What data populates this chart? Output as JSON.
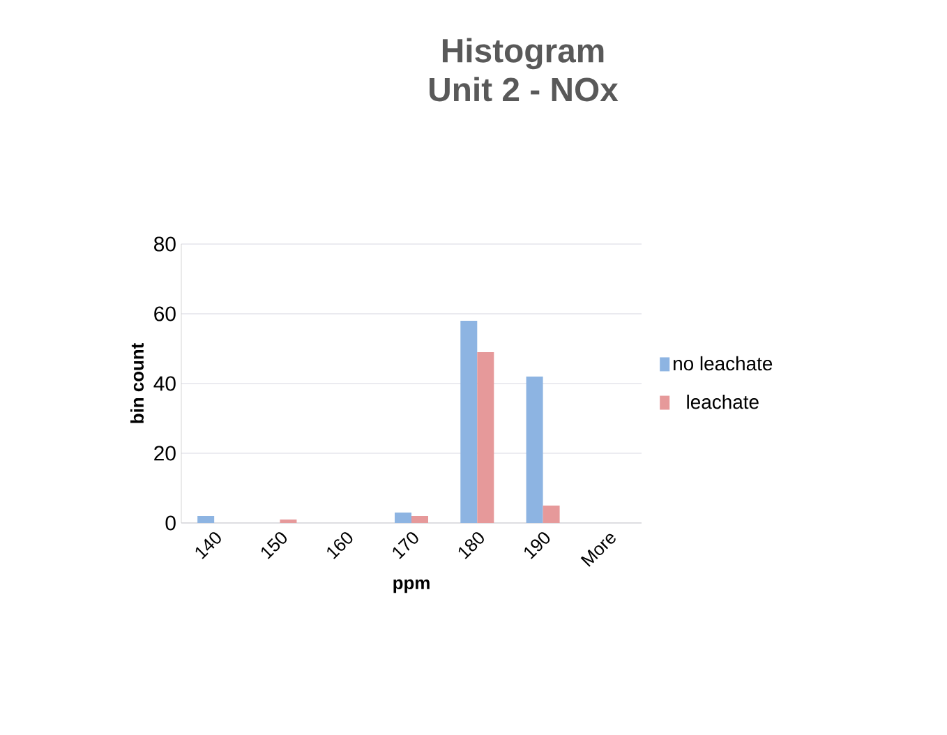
{
  "chart_data": {
    "type": "bar",
    "title": "Histogram",
    "subtitle": "Unit 2 - NOx",
    "xlabel": "ppm",
    "ylabel": "bin count",
    "categories": [
      "140",
      "150",
      "160",
      "170",
      "180",
      "190",
      "More"
    ],
    "series": [
      {
        "name": "no leachate",
        "color": "#8db4e2",
        "values": [
          2,
          0,
          0,
          3,
          58,
          42,
          0
        ]
      },
      {
        "name": "leachate",
        "color": "#e6999a",
        "values": [
          0,
          1,
          0,
          2,
          49,
          5,
          0
        ]
      }
    ],
    "ylim": [
      0,
      80
    ],
    "yticks": [
      0,
      20,
      40,
      60,
      80
    ],
    "grid": "y",
    "legend": "right"
  }
}
